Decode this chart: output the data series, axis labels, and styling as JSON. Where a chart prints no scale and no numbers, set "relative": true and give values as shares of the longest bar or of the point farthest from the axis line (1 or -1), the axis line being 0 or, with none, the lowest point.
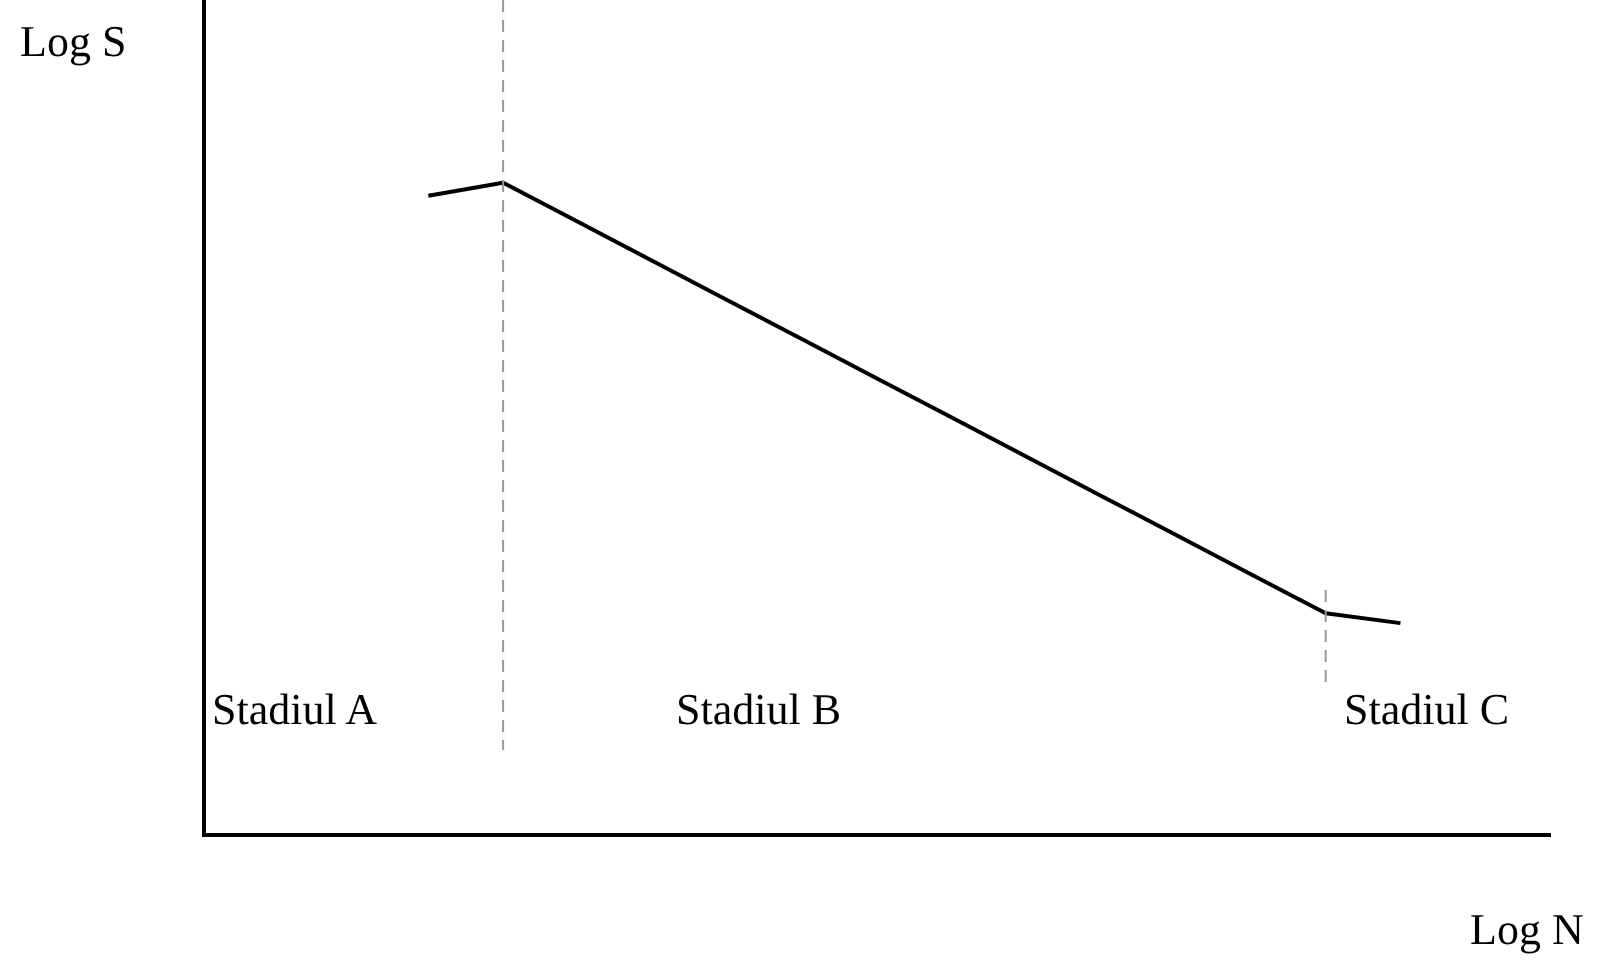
{
  "chart_data": {
    "type": "line",
    "xlabel": "Log N",
    "ylabel": "Log S",
    "relative": true,
    "categories": [
      null,
      null,
      null,
      null,
      null,
      null,
      null,
      null,
      null,
      null,
      null,
      null,
      null,
      null,
      null,
      null,
      null,
      null,
      null
    ],
    "series": [
      {
        "color": "#000000",
        "values": [
          null,
          null,
          null,
          0.98,
          1.0,
          0.94,
          0.88,
          0.82,
          0.76,
          0.7,
          0.64,
          0.58,
          0.52,
          0.46,
          0.4,
          0.34,
          0.325,
          null,
          null
        ]
      }
    ],
    "annotations": [
      "Stadiul A",
      "Stadiul B",
      "Stadiul C"
    ],
    "marker": "none",
    "grid": false,
    "legend": false
  }
}
